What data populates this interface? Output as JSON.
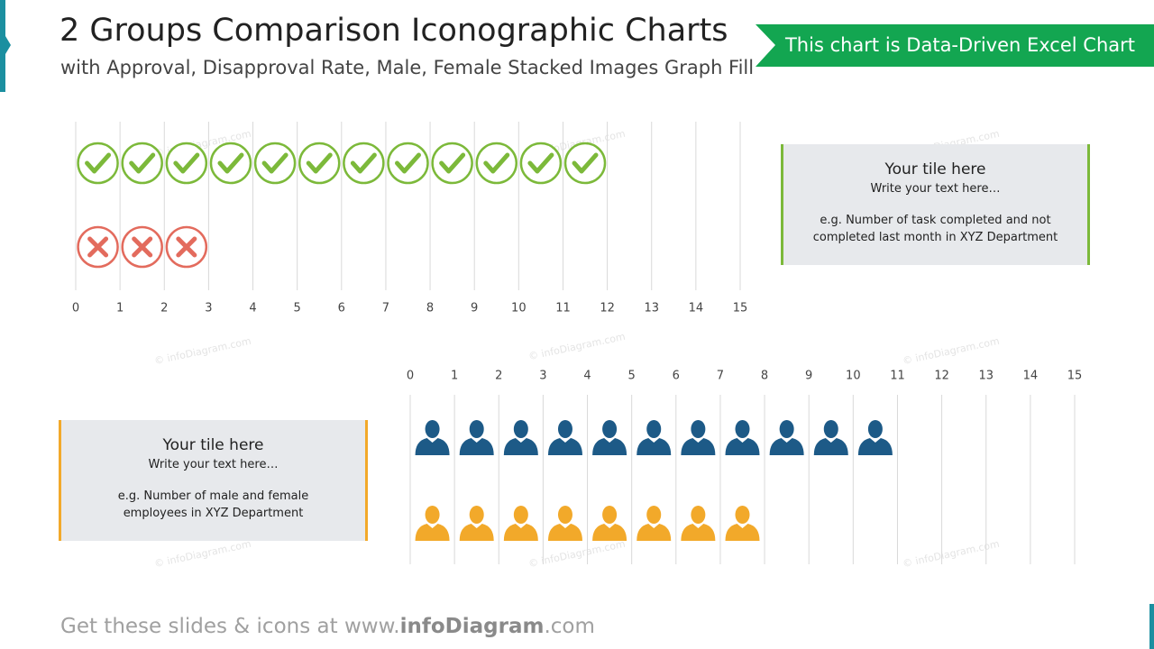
{
  "header": {
    "title": "2 Groups Comparison Iconographic Charts",
    "subtitle": "with Approval, Disapproval Rate, Male, Female Stacked Images Graph Fill",
    "badge": "This chart is Data-Driven Excel Chart"
  },
  "chart_data": [
    {
      "type": "pictograph",
      "values": [
        12,
        3
      ],
      "icons": [
        "check",
        "cross"
      ],
      "colors": [
        "#7cb93a",
        "#e36b5d"
      ],
      "xlim": [
        0,
        15
      ],
      "xticks": [
        0,
        1,
        2,
        3,
        4,
        5,
        6,
        7,
        8,
        9,
        10,
        11,
        12,
        13,
        14,
        15
      ],
      "grid": true
    },
    {
      "type": "pictograph",
      "values": [
        11,
        8
      ],
      "icons": [
        "person",
        "person"
      ],
      "colors": [
        "#1d5a87",
        "#f2a92a"
      ],
      "xlim": [
        0,
        15
      ],
      "xticks": [
        0,
        1,
        2,
        3,
        4,
        5,
        6,
        7,
        8,
        9,
        10,
        11,
        12,
        13,
        14,
        15
      ],
      "grid": true
    }
  ],
  "boxes": [
    {
      "title": "Your tile here",
      "text": "Write your text here…",
      "note": "e.g. Number of task completed and not completed last month in XYZ Department"
    },
    {
      "title": "Your tile here",
      "text": "Write your text here…",
      "note": "e.g. Number of male and female employees in XYZ Department"
    }
  ],
  "watermark": "© infoDiagram.com",
  "footer": {
    "prefix": "Get these slides & icons at www.",
    "brand": "infoDiagram",
    "suffix": ".com"
  }
}
